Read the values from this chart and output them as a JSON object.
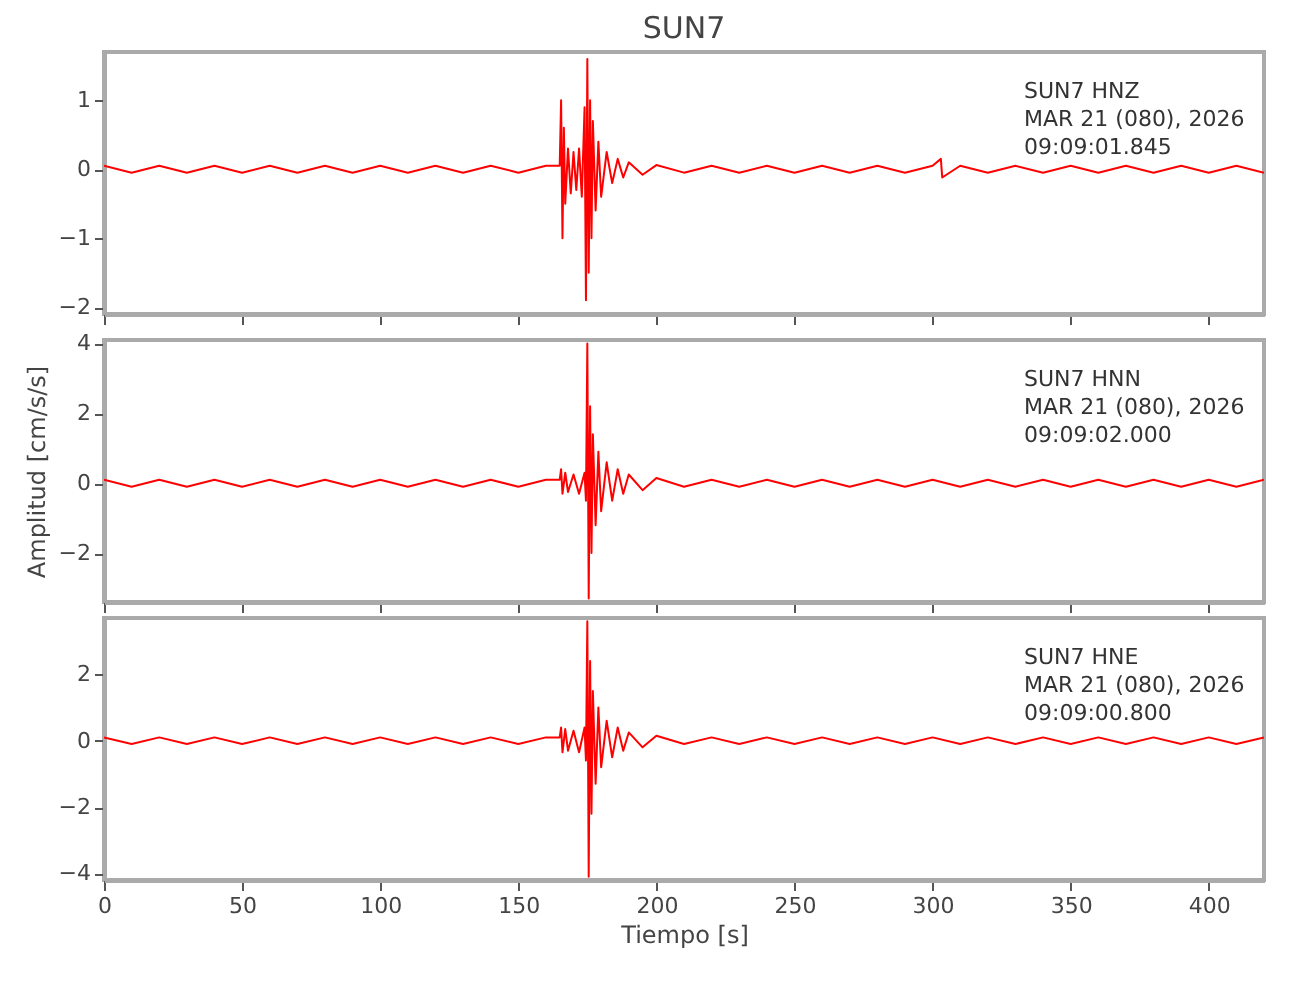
{
  "chart_data": [
    {
      "type": "line",
      "title": "SUN7",
      "tick_labels": "y",
      "annotations": [
        "SUN7   HNZ",
        "MAR 21 (080), 2026",
        "09:09:01.845"
      ],
      "x": [
        0,
        10,
        20,
        30,
        40,
        50,
        60,
        70,
        80,
        90,
        100,
        110,
        120,
        130,
        140,
        150,
        160,
        165,
        165.5,
        166,
        166.5,
        167,
        168,
        169,
        170,
        171,
        172,
        173,
        174,
        174.5,
        175,
        175.5,
        176,
        176.5,
        177,
        178,
        179,
        180,
        182,
        184,
        186,
        188,
        190,
        195,
        200,
        210,
        220,
        230,
        240,
        250,
        260,
        270,
        280,
        290,
        300,
        303,
        303.5,
        310,
        320,
        330,
        340,
        350,
        360,
        370,
        380,
        390,
        400,
        410,
        420
      ],
      "series": [
        {
          "color": "#ff0000",
          "values": [
            0.05,
            -0.05,
            0.05,
            -0.05,
            0.05,
            -0.05,
            0.05,
            -0.05,
            0.05,
            -0.05,
            0.05,
            -0.05,
            0.05,
            -0.05,
            0.05,
            -0.05,
            0.05,
            0.05,
            1.0,
            -1.0,
            0.6,
            -0.5,
            0.3,
            -0.35,
            0.25,
            -0.3,
            0.3,
            -0.4,
            0.9,
            -1.9,
            1.6,
            -1.5,
            1.0,
            -1.0,
            0.7,
            -0.6,
            0.4,
            -0.4,
            0.25,
            -0.2,
            0.15,
            -0.12,
            0.1,
            -0.08,
            0.06,
            -0.05,
            0.05,
            -0.05,
            0.05,
            -0.05,
            0.05,
            -0.05,
            0.05,
            -0.05,
            0.05,
            0.15,
            -0.12,
            0.05,
            -0.05,
            0.05,
            -0.05,
            0.05,
            -0.05,
            0.05,
            -0.05,
            0.05,
            -0.05,
            0.05,
            -0.05
          ]
        }
      ],
      "xlim": [
        0,
        420
      ],
      "xticks": [
        0,
        50,
        100,
        150,
        200,
        250,
        300,
        350,
        400
      ],
      "ylim": [
        -2.1,
        1.7
      ],
      "yticks": [
        -2,
        -1,
        0,
        1
      ]
    },
    {
      "type": "line",
      "ylabel": "Amplitud [cm/s/s]",
      "tick_labels": "y",
      "annotations": [
        "SUN7   HNN",
        "MAR 21 (080), 2026",
        "09:09:02.000"
      ],
      "x": [
        0,
        10,
        20,
        30,
        40,
        50,
        60,
        70,
        80,
        90,
        100,
        110,
        120,
        130,
        140,
        150,
        160,
        165,
        165.5,
        166,
        167,
        168,
        170,
        172,
        174,
        174.5,
        175,
        175.5,
        176,
        176.5,
        177,
        178,
        179,
        180,
        182,
        184,
        186,
        188,
        190,
        195,
        200,
        210,
        220,
        230,
        240,
        250,
        260,
        270,
        280,
        290,
        300,
        310,
        320,
        330,
        340,
        350,
        360,
        370,
        380,
        390,
        400,
        410,
        420
      ],
      "series": [
        {
          "color": "#ff0000",
          "values": [
            0.1,
            -0.1,
            0.1,
            -0.1,
            0.1,
            -0.1,
            0.1,
            -0.1,
            0.1,
            -0.1,
            0.1,
            -0.1,
            0.1,
            -0.1,
            0.1,
            -0.1,
            0.1,
            0.1,
            0.4,
            -0.3,
            0.3,
            -0.25,
            0.25,
            -0.3,
            0.3,
            -0.5,
            4.0,
            -3.3,
            2.2,
            -2.0,
            1.4,
            -1.2,
            0.9,
            -0.8,
            0.6,
            -0.5,
            0.4,
            -0.3,
            0.25,
            -0.2,
            0.15,
            -0.1,
            0.1,
            -0.1,
            0.1,
            -0.1,
            0.1,
            -0.1,
            0.1,
            -0.1,
            0.1,
            -0.1,
            0.1,
            -0.1,
            0.1,
            -0.1,
            0.1,
            -0.1,
            0.1,
            -0.1,
            0.1,
            -0.1,
            0.1
          ]
        }
      ],
      "xlim": [
        0,
        420
      ],
      "xticks": [
        0,
        50,
        100,
        150,
        200,
        250,
        300,
        350,
        400
      ],
      "ylim": [
        -3.4,
        4.1
      ],
      "yticks": [
        -2,
        0,
        2,
        4
      ]
    },
    {
      "type": "line",
      "xlabel": "Tiempo [s]",
      "annotations": [
        "SUN7   HNE",
        "MAR 21 (080), 2026",
        "09:09:00.800"
      ],
      "x": [
        0,
        10,
        20,
        30,
        40,
        50,
        60,
        70,
        80,
        90,
        100,
        110,
        120,
        130,
        140,
        150,
        160,
        165,
        165.5,
        166,
        167,
        168,
        170,
        172,
        174,
        174.5,
        175,
        175.5,
        176,
        176.5,
        177,
        178,
        179,
        180,
        182,
        184,
        186,
        188,
        190,
        195,
        200,
        210,
        220,
        230,
        240,
        250,
        260,
        270,
        280,
        290,
        300,
        310,
        320,
        330,
        340,
        350,
        360,
        370,
        380,
        390,
        400,
        410,
        420
      ],
      "series": [
        {
          "color": "#ff0000",
          "values": [
            0.1,
            -0.1,
            0.1,
            -0.1,
            0.1,
            -0.1,
            0.1,
            -0.1,
            0.1,
            -0.1,
            0.1,
            -0.1,
            0.1,
            -0.1,
            0.1,
            -0.1,
            0.1,
            0.1,
            0.4,
            -0.35,
            0.35,
            -0.3,
            0.3,
            -0.35,
            0.4,
            -0.6,
            3.6,
            -4.1,
            2.4,
            -2.2,
            1.5,
            -1.3,
            1.0,
            -0.8,
            0.6,
            -0.5,
            0.4,
            -0.3,
            0.25,
            -0.2,
            0.15,
            -0.1,
            0.1,
            -0.1,
            0.1,
            -0.1,
            0.1,
            -0.1,
            0.1,
            -0.1,
            0.1,
            -0.1,
            0.1,
            -0.1,
            0.1,
            -0.1,
            0.1,
            -0.1,
            0.1,
            -0.1,
            0.1,
            -0.1,
            0.1
          ]
        }
      ],
      "xlim": [
        0,
        420
      ],
      "xticks": [
        0,
        50,
        100,
        150,
        200,
        250,
        300,
        350,
        400
      ],
      "ylim": [
        -4.2,
        3.7
      ],
      "yticks": [
        -4,
        -2,
        0,
        2
      ]
    }
  ]
}
